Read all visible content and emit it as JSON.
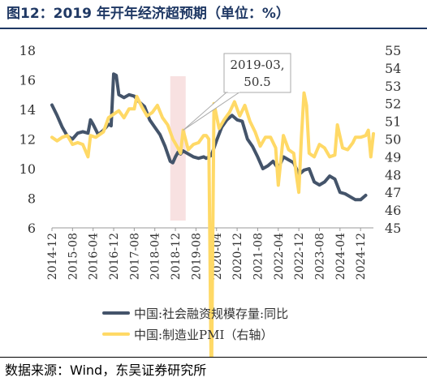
{
  "title": "图12：2019 年开年经济超预期（单位：%）",
  "source": "数据来源：Wind，东吴证券研究所",
  "chart_data": {
    "type": "line",
    "x_ticks": [
      "2014-12",
      "2015-08",
      "2016-04",
      "2016-12",
      "2017-08",
      "2018-04",
      "2018-12",
      "2019-08",
      "2020-04",
      "2020-12",
      "2021-08",
      "2022-04",
      "2022-12",
      "2023-08",
      "2024-04",
      "2024-12"
    ],
    "y_left": {
      "ticks": [
        "6",
        "8",
        "10",
        "12",
        "14",
        "16",
        "18"
      ],
      "range": [
        6,
        18
      ]
    },
    "y_right": {
      "ticks": [
        "45",
        "46",
        "47",
        "48",
        "49",
        "50",
        "51",
        "52",
        "53",
        "54",
        "55"
      ],
      "range": [
        45,
        55
      ]
    },
    "grid": false,
    "legend_position": "bottom",
    "annotation": {
      "line1": "2019-03,",
      "line2": "50.5",
      "x": "2019-03",
      "y": 50.5
    },
    "highlight": {
      "x_start": "2018-10",
      "x_end": "2019-04"
    },
    "series": [
      {
        "name": "中国:社会融资规模存量:同比",
        "axis": "left",
        "color": "#44546a",
        "points": [
          [
            "2014-12",
            14.3
          ],
          [
            "2015-02",
            13.6
          ],
          [
            "2015-04",
            12.8
          ],
          [
            "2015-06",
            12.2
          ],
          [
            "2015-08",
            12.0
          ],
          [
            "2015-10",
            12.4
          ],
          [
            "2015-12",
            12.5
          ],
          [
            "2016-02",
            12.4
          ],
          [
            "2016-03",
            13.3
          ],
          [
            "2016-04",
            13.0
          ],
          [
            "2016-06",
            12.3
          ],
          [
            "2016-08",
            12.6
          ],
          [
            "2016-10",
            13.0
          ],
          [
            "2016-11",
            12.9
          ],
          [
            "2016-12",
            16.4
          ],
          [
            "2017-01",
            16.3
          ],
          [
            "2017-02",
            15.0
          ],
          [
            "2017-04",
            14.8
          ],
          [
            "2017-06",
            15.0
          ],
          [
            "2017-08",
            14.9
          ],
          [
            "2017-10",
            14.5
          ],
          [
            "2017-12",
            14.2
          ],
          [
            "2018-02",
            13.3
          ],
          [
            "2018-04",
            12.8
          ],
          [
            "2018-06",
            12.3
          ],
          [
            "2018-08",
            11.5
          ],
          [
            "2018-10",
            10.5
          ],
          [
            "2018-11",
            10.4
          ],
          [
            "2018-12",
            10.8
          ],
          [
            "2019-01",
            11.1
          ],
          [
            "2019-02",
            11.0
          ],
          [
            "2019-03",
            11.2
          ],
          [
            "2019-05",
            11.0
          ],
          [
            "2019-07",
            10.8
          ],
          [
            "2019-09",
            10.7
          ],
          [
            "2019-11",
            10.8
          ],
          [
            "2019-12",
            10.7
          ],
          [
            "2020-02",
            10.9
          ],
          [
            "2020-04",
            11.9
          ],
          [
            "2020-06",
            12.8
          ],
          [
            "2020-08",
            13.3
          ],
          [
            "2020-10",
            13.6
          ],
          [
            "2020-12",
            13.3
          ],
          [
            "2021-02",
            13.2
          ],
          [
            "2021-04",
            12.0
          ],
          [
            "2021-06",
            11.5
          ],
          [
            "2021-08",
            10.8
          ],
          [
            "2021-10",
            10.0
          ],
          [
            "2021-12",
            10.2
          ],
          [
            "2022-02",
            10.5
          ],
          [
            "2022-04",
            10.0
          ],
          [
            "2022-06",
            10.8
          ],
          [
            "2022-08",
            10.6
          ],
          [
            "2022-10",
            10.4
          ],
          [
            "2022-12",
            9.6
          ],
          [
            "2023-02",
            9.9
          ],
          [
            "2023-04",
            10.0
          ],
          [
            "2023-06",
            9.1
          ],
          [
            "2023-08",
            8.9
          ],
          [
            "2023-10",
            9.1
          ],
          [
            "2023-12",
            9.5
          ],
          [
            "2024-02",
            9.3
          ],
          [
            "2024-04",
            8.4
          ],
          [
            "2024-06",
            8.3
          ],
          [
            "2024-08",
            8.1
          ],
          [
            "2024-10",
            7.9
          ],
          [
            "2024-12",
            7.9
          ],
          [
            "2025-02",
            8.2
          ]
        ]
      },
      {
        "name": "中国:制造业PMI（右轴）",
        "axis": "right",
        "color": "#ffd966",
        "points": [
          [
            "2014-12",
            50.1
          ],
          [
            "2015-02",
            49.9
          ],
          [
            "2015-04",
            50.1
          ],
          [
            "2015-06",
            50.2
          ],
          [
            "2015-08",
            49.7
          ],
          [
            "2015-10",
            49.8
          ],
          [
            "2015-12",
            49.7
          ],
          [
            "2016-02",
            49.0
          ],
          [
            "2016-03",
            50.2
          ],
          [
            "2016-05",
            50.1
          ],
          [
            "2016-08",
            50.4
          ],
          [
            "2016-10",
            51.2
          ],
          [
            "2016-12",
            51.4
          ],
          [
            "2017-02",
            51.6
          ],
          [
            "2017-04",
            51.2
          ],
          [
            "2017-06",
            51.7
          ],
          [
            "2017-08",
            51.7
          ],
          [
            "2017-09",
            52.4
          ],
          [
            "2017-11",
            51.8
          ],
          [
            "2018-01",
            51.3
          ],
          [
            "2018-03",
            51.5
          ],
          [
            "2018-05",
            51.9
          ],
          [
            "2018-07",
            51.2
          ],
          [
            "2018-09",
            50.8
          ],
          [
            "2018-11",
            50.0
          ],
          [
            "2019-01",
            49.5
          ],
          [
            "2019-02",
            49.2
          ],
          [
            "2019-03",
            50.5
          ],
          [
            "2019-05",
            49.4
          ],
          [
            "2019-07",
            49.7
          ],
          [
            "2019-09",
            49.8
          ],
          [
            "2019-11",
            50.2
          ],
          [
            "2019-12",
            50.2
          ],
          [
            "2020-01",
            50.0
          ],
          [
            "2020-02",
            35.7
          ],
          [
            "2020-03",
            52.0
          ],
          [
            "2020-05",
            50.6
          ],
          [
            "2020-07",
            51.1
          ],
          [
            "2020-09",
            51.5
          ],
          [
            "2020-11",
            52.1
          ],
          [
            "2021-01",
            51.3
          ],
          [
            "2021-03",
            51.9
          ],
          [
            "2021-05",
            51.0
          ],
          [
            "2021-07",
            50.4
          ],
          [
            "2021-09",
            49.6
          ],
          [
            "2021-11",
            50.1
          ],
          [
            "2022-01",
            50.1
          ],
          [
            "2022-03",
            49.5
          ],
          [
            "2022-04",
            47.4
          ],
          [
            "2022-06",
            50.2
          ],
          [
            "2022-08",
            49.4
          ],
          [
            "2022-10",
            49.2
          ],
          [
            "2022-11",
            48.0
          ],
          [
            "2022-12",
            47.0
          ],
          [
            "2023-01",
            50.1
          ],
          [
            "2023-02",
            52.6
          ],
          [
            "2023-03",
            51.9
          ],
          [
            "2023-04",
            49.2
          ],
          [
            "2023-06",
            49.0
          ],
          [
            "2023-08",
            49.7
          ],
          [
            "2023-10",
            49.5
          ],
          [
            "2023-12",
            49.0
          ],
          [
            "2024-02",
            49.1
          ],
          [
            "2024-03",
            50.8
          ],
          [
            "2024-05",
            49.5
          ],
          [
            "2024-07",
            49.4
          ],
          [
            "2024-09",
            49.8
          ],
          [
            "2024-10",
            50.1
          ],
          [
            "2024-12",
            50.1
          ],
          [
            "2025-02",
            50.2
          ],
          [
            "2025-03",
            50.5
          ],
          [
            "2025-04",
            49.0
          ],
          [
            "2025-05",
            50.3
          ]
        ]
      }
    ]
  }
}
